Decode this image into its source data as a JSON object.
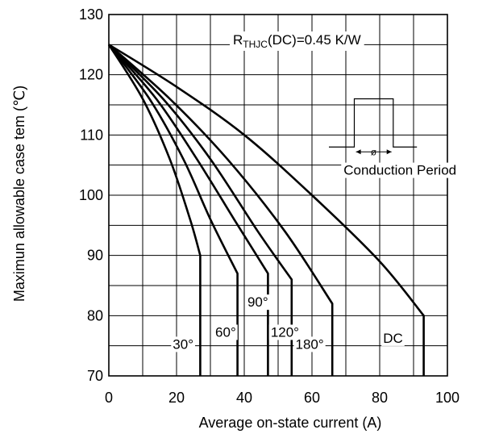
{
  "chart_data": {
    "type": "line",
    "title": "",
    "xlabel": "Average on-state current (A)",
    "ylabel": "Maximun allowable case tem (℃)",
    "xlim": [
      0,
      100
    ],
    "ylim": [
      70,
      130
    ],
    "x_ticks": [
      "0",
      "20",
      "40",
      "60",
      "80",
      "100"
    ],
    "y_ticks": [
      "70",
      "80",
      "90",
      "100",
      "110",
      "120",
      "130"
    ],
    "grid": true,
    "annotation": {
      "prefix": "R",
      "subscript": "THJC",
      "suffix": "(DC)=0.45 K/W"
    },
    "inset_label": "Conduction Period",
    "inset_symbol": "ø",
    "series": [
      {
        "name": "30°",
        "x": [
          0,
          10,
          18,
          24,
          27,
          27
        ],
        "y": [
          125,
          116,
          106,
          96,
          90,
          70
        ]
      },
      {
        "name": "60°",
        "x": [
          0,
          12,
          22,
          30,
          38,
          38
        ],
        "y": [
          125,
          116,
          106,
          96,
          87,
          70
        ]
      },
      {
        "name": "90°",
        "x": [
          0,
          14,
          26,
          37,
          47,
          47
        ],
        "y": [
          125,
          116,
          106,
          96,
          87,
          70
        ]
      },
      {
        "name": "120°",
        "x": [
          0,
          16,
          30,
          44,
          54,
          54
        ],
        "y": [
          125,
          116,
          106,
          94,
          86,
          70
        ]
      },
      {
        "name": "180°",
        "x": [
          0,
          18,
          35,
          52,
          66,
          66
        ],
        "y": [
          125,
          116,
          106,
          94,
          82,
          70
        ]
      },
      {
        "name": "DC",
        "x": [
          0,
          20,
          40,
          60,
          80,
          93,
          93
        ],
        "y": [
          125,
          118,
          110,
          100,
          89,
          80,
          70
        ]
      }
    ]
  }
}
